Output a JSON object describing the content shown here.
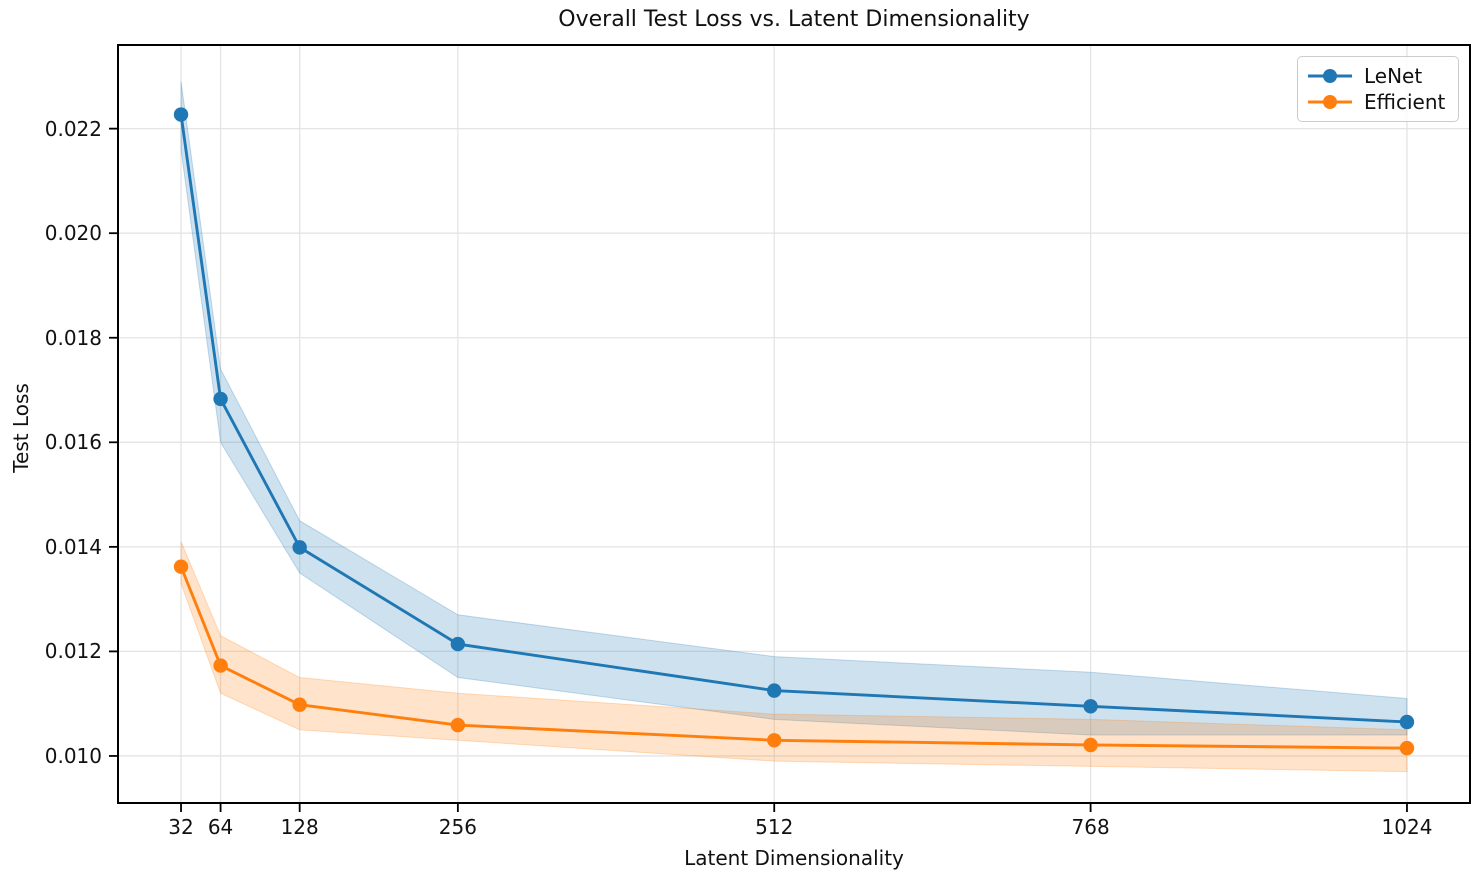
{
  "chart_data": {
    "type": "line",
    "title": "Overall Test Loss vs. Latent Dimensionality",
    "xlabel": "Latent Dimensionality",
    "ylabel": "Test Loss",
    "x": [
      32,
      64,
      128,
      256,
      512,
      768,
      1024
    ],
    "xtick_labels": [
      "32",
      "64",
      "128",
      "256",
      "512",
      "768",
      "1024"
    ],
    "yticks": [
      0.01,
      0.012,
      0.014,
      0.016,
      0.018,
      0.02,
      0.022
    ],
    "ytick_labels": [
      "0.010",
      "0.012",
      "0.014",
      "0.016",
      "0.018",
      "0.020",
      "0.022"
    ],
    "xlim": [
      -19,
      1075
    ],
    "ylim": [
      0.0091,
      0.0236
    ],
    "x_scale": "linear",
    "grid": true,
    "legend_position": "upper right",
    "series": [
      {
        "name": "LeNet",
        "color": "#1f77b4",
        "marker": "circle",
        "values": [
          0.02227,
          0.01683,
          0.01399,
          0.01214,
          0.01125,
          0.01095,
          0.01065
        ],
        "band_lower": [
          0.0216,
          0.016,
          0.0135,
          0.0115,
          0.0107,
          0.0104,
          0.0104
        ],
        "band_upper": [
          0.0229,
          0.0174,
          0.0145,
          0.0127,
          0.0119,
          0.0116,
          0.0111
        ]
      },
      {
        "name": "Efficient",
        "color": "#ff7f0e",
        "marker": "circle",
        "values": [
          0.01362,
          0.01173,
          0.01098,
          0.01059,
          0.0103,
          0.01021,
          0.01015
        ],
        "band_lower": [
          0.0133,
          0.0112,
          0.0105,
          0.0103,
          0.0099,
          0.0098,
          0.0097
        ],
        "band_upper": [
          0.0141,
          0.0123,
          0.0115,
          0.0112,
          0.0108,
          0.0107,
          0.0105
        ]
      }
    ],
    "style": {
      "grid_color": "#e4e4e4",
      "spine_color": "#000000",
      "background": "#ffffff",
      "band_opacity": 0.22
    }
  }
}
